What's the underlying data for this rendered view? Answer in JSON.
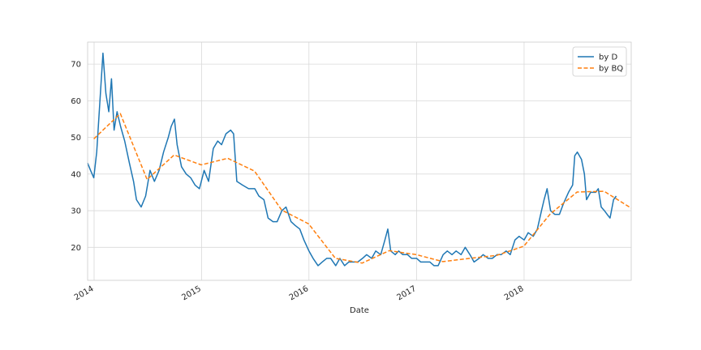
{
  "chart_data": {
    "type": "line",
    "title": "",
    "xlabel": "Date",
    "ylabel": "",
    "xlim": [
      "2013-12-10",
      "2018-12-31"
    ],
    "ylim": [
      11,
      76
    ],
    "x_ticks": [
      "2014",
      "2015",
      "2016",
      "2017",
      "2018"
    ],
    "y_ticks": [
      20,
      30,
      40,
      50,
      60,
      70
    ],
    "grid": true,
    "legend": "top-right",
    "series": [
      {
        "name": "by D",
        "style": "solid",
        "color": "#1f77b4",
        "points": [
          [
            "2013-12-10",
            43
          ],
          [
            "2013-12-20",
            41
          ],
          [
            "2013-12-31",
            39
          ],
          [
            "2014-01-10",
            46
          ],
          [
            "2014-01-20",
            59
          ],
          [
            "2014-01-31",
            73
          ],
          [
            "2014-02-10",
            62
          ],
          [
            "2014-02-20",
            57
          ],
          [
            "2014-03-01",
            66
          ],
          [
            "2014-03-10",
            52
          ],
          [
            "2014-03-20",
            57
          ],
          [
            "2014-04-01",
            53
          ],
          [
            "2014-04-15",
            49
          ],
          [
            "2014-05-01",
            43
          ],
          [
            "2014-05-15",
            38
          ],
          [
            "2014-05-25",
            33
          ],
          [
            "2014-06-10",
            31
          ],
          [
            "2014-06-25",
            34
          ],
          [
            "2014-07-10",
            41
          ],
          [
            "2014-07-25",
            38
          ],
          [
            "2014-08-10",
            41
          ],
          [
            "2014-08-25",
            46
          ],
          [
            "2014-09-10",
            50
          ],
          [
            "2014-09-20",
            53
          ],
          [
            "2014-10-01",
            55
          ],
          [
            "2014-10-10",
            48
          ],
          [
            "2014-10-25",
            42
          ],
          [
            "2014-11-10",
            40
          ],
          [
            "2014-11-25",
            39
          ],
          [
            "2014-12-10",
            37
          ],
          [
            "2014-12-25",
            36
          ],
          [
            "2015-01-10",
            41
          ],
          [
            "2015-01-25",
            38
          ],
          [
            "2015-02-10",
            47
          ],
          [
            "2015-02-25",
            49
          ],
          [
            "2015-03-10",
            48
          ],
          [
            "2015-03-25",
            51
          ],
          [
            "2015-04-10",
            52
          ],
          [
            "2015-04-20",
            51
          ],
          [
            "2015-05-01",
            38
          ],
          [
            "2015-05-20",
            37
          ],
          [
            "2015-06-10",
            36
          ],
          [
            "2015-07-01",
            36
          ],
          [
            "2015-07-15",
            34
          ],
          [
            "2015-08-01",
            33
          ],
          [
            "2015-08-15",
            28
          ],
          [
            "2015-09-01",
            27
          ],
          [
            "2015-09-15",
            27
          ],
          [
            "2015-10-01",
            30
          ],
          [
            "2015-10-15",
            31
          ],
          [
            "2015-11-01",
            27
          ],
          [
            "2015-11-15",
            26
          ],
          [
            "2015-12-01",
            25
          ],
          [
            "2015-12-15",
            22
          ],
          [
            "2016-01-01",
            19
          ],
          [
            "2016-01-15",
            17
          ],
          [
            "2016-02-01",
            15
          ],
          [
            "2016-02-15",
            16
          ],
          [
            "2016-03-01",
            17
          ],
          [
            "2016-03-15",
            17
          ],
          [
            "2016-04-01",
            15
          ],
          [
            "2016-04-15",
            17
          ],
          [
            "2016-05-01",
            15
          ],
          [
            "2016-05-15",
            16
          ],
          [
            "2016-06-01",
            16
          ],
          [
            "2016-06-15",
            16
          ],
          [
            "2016-07-01",
            17
          ],
          [
            "2016-07-15",
            18
          ],
          [
            "2016-08-01",
            17
          ],
          [
            "2016-08-15",
            19
          ],
          [
            "2016-09-01",
            18
          ],
          [
            "2016-09-15",
            22
          ],
          [
            "2016-09-25",
            25
          ],
          [
            "2016-10-05",
            19
          ],
          [
            "2016-10-20",
            18
          ],
          [
            "2016-11-01",
            19
          ],
          [
            "2016-11-15",
            18
          ],
          [
            "2016-12-01",
            18
          ],
          [
            "2016-12-15",
            17
          ],
          [
            "2017-01-01",
            17
          ],
          [
            "2017-01-15",
            16
          ],
          [
            "2017-02-01",
            16
          ],
          [
            "2017-02-15",
            16
          ],
          [
            "2017-03-01",
            15
          ],
          [
            "2017-03-15",
            15
          ],
          [
            "2017-04-01",
            18
          ],
          [
            "2017-04-15",
            19
          ],
          [
            "2017-05-01",
            18
          ],
          [
            "2017-05-15",
            19
          ],
          [
            "2017-06-01",
            18
          ],
          [
            "2017-06-15",
            20
          ],
          [
            "2017-07-01",
            18
          ],
          [
            "2017-07-15",
            16
          ],
          [
            "2017-08-01",
            17
          ],
          [
            "2017-08-15",
            18
          ],
          [
            "2017-09-01",
            17
          ],
          [
            "2017-09-15",
            17
          ],
          [
            "2017-10-01",
            18
          ],
          [
            "2017-10-15",
            18
          ],
          [
            "2017-11-01",
            19
          ],
          [
            "2017-11-15",
            18
          ],
          [
            "2017-12-01",
            22
          ],
          [
            "2017-12-15",
            23
          ],
          [
            "2018-01-01",
            22
          ],
          [
            "2018-01-15",
            24
          ],
          [
            "2018-02-01",
            23
          ],
          [
            "2018-02-15",
            25
          ],
          [
            "2018-03-01",
            30
          ],
          [
            "2018-03-10",
            33
          ],
          [
            "2018-03-20",
            36
          ],
          [
            "2018-04-01",
            30
          ],
          [
            "2018-04-15",
            29
          ],
          [
            "2018-05-01",
            29
          ],
          [
            "2018-05-15",
            32
          ],
          [
            "2018-06-01",
            35
          ],
          [
            "2018-06-15",
            37
          ],
          [
            "2018-06-22",
            45
          ],
          [
            "2018-07-01",
            46
          ],
          [
            "2018-07-15",
            44
          ],
          [
            "2018-07-25",
            40
          ],
          [
            "2018-08-01",
            33
          ],
          [
            "2018-08-15",
            35
          ],
          [
            "2018-09-01",
            35
          ],
          [
            "2018-09-10",
            36
          ],
          [
            "2018-09-20",
            31
          ],
          [
            "2018-10-01",
            30
          ],
          [
            "2018-10-10",
            29
          ],
          [
            "2018-10-20",
            28
          ],
          [
            "2018-11-01",
            33
          ],
          [
            "2018-11-10",
            34
          ]
        ]
      },
      {
        "name": "by BQ",
        "style": "dashed",
        "color": "#ff7f0e",
        "points": [
          [
            "2013-12-31",
            49.6
          ],
          [
            "2014-03-31",
            56.5
          ],
          [
            "2014-06-30",
            38.5
          ],
          [
            "2014-09-30",
            45.2
          ],
          [
            "2014-12-31",
            42.5
          ],
          [
            "2015-03-31",
            44.3
          ],
          [
            "2015-06-30",
            40.8
          ],
          [
            "2015-09-30",
            30.2
          ],
          [
            "2015-12-31",
            26.4
          ],
          [
            "2016-03-31",
            17.0
          ],
          [
            "2016-06-30",
            15.7
          ],
          [
            "2016-09-30",
            19.1
          ],
          [
            "2016-12-31",
            18.0
          ],
          [
            "2017-03-31",
            16.1
          ],
          [
            "2017-06-30",
            17.0
          ],
          [
            "2017-09-30",
            17.8
          ],
          [
            "2017-12-31",
            20.3
          ],
          [
            "2018-03-31",
            29.1
          ],
          [
            "2018-06-30",
            35.1
          ],
          [
            "2018-09-30",
            35.3
          ],
          [
            "2018-12-31",
            30.7
          ]
        ]
      }
    ]
  }
}
